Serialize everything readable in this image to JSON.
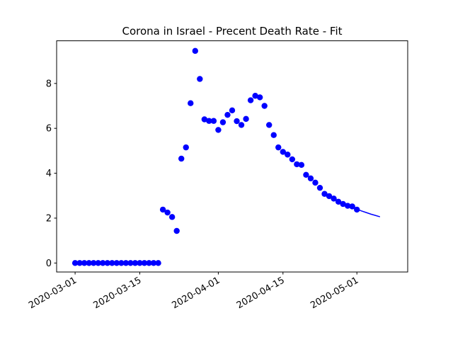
{
  "chart_data": {
    "type": "scatter",
    "title": "Corona in Israel - Precent Death Rate - Fit",
    "xlabel": "",
    "ylabel": "",
    "x_start": "2020-03-01",
    "xlim": [
      "2020-02-26",
      "2020-05-12"
    ],
    "ylim": [
      -0.4,
      9.9
    ],
    "x_ticks": [
      "2020-03-01",
      "2020-03-15",
      "2020-04-01",
      "2020-04-15",
      "2020-05-01"
    ],
    "y_ticks": [
      0,
      2,
      4,
      6,
      8
    ],
    "grid": false,
    "series": [
      {
        "kind": "points",
        "color": "#0000ff",
        "points": [
          [
            "2020-03-01",
            0
          ],
          [
            "2020-03-02",
            0
          ],
          [
            "2020-03-03",
            0
          ],
          [
            "2020-03-04",
            0
          ],
          [
            "2020-03-05",
            0
          ],
          [
            "2020-03-06",
            0
          ],
          [
            "2020-03-07",
            0
          ],
          [
            "2020-03-08",
            0
          ],
          [
            "2020-03-09",
            0
          ],
          [
            "2020-03-10",
            0
          ],
          [
            "2020-03-11",
            0
          ],
          [
            "2020-03-12",
            0
          ],
          [
            "2020-03-13",
            0
          ],
          [
            "2020-03-14",
            0
          ],
          [
            "2020-03-15",
            0
          ],
          [
            "2020-03-16",
            0
          ],
          [
            "2020-03-17",
            0
          ],
          [
            "2020-03-18",
            0
          ],
          [
            "2020-03-19",
            0
          ],
          [
            "2020-03-20",
            2.38
          ],
          [
            "2020-03-21",
            2.25
          ],
          [
            "2020-03-22",
            2.05
          ],
          [
            "2020-03-23",
            1.43
          ],
          [
            "2020-03-24",
            4.65
          ],
          [
            "2020-03-25",
            5.15
          ],
          [
            "2020-03-26",
            7.12
          ],
          [
            "2020-03-27",
            9.45
          ],
          [
            "2020-03-28",
            8.2
          ],
          [
            "2020-03-29",
            6.4
          ],
          [
            "2020-03-30",
            6.33
          ],
          [
            "2020-03-31",
            6.33
          ],
          [
            "2020-04-01",
            5.93
          ],
          [
            "2020-04-02",
            6.27
          ],
          [
            "2020-04-03",
            6.6
          ],
          [
            "2020-04-04",
            6.8
          ],
          [
            "2020-04-05",
            6.32
          ],
          [
            "2020-04-06",
            6.15
          ],
          [
            "2020-04-07",
            6.42
          ],
          [
            "2020-04-08",
            7.25
          ],
          [
            "2020-04-09",
            7.45
          ],
          [
            "2020-04-10",
            7.38
          ],
          [
            "2020-04-11",
            7.0
          ],
          [
            "2020-04-12",
            6.15
          ],
          [
            "2020-04-13",
            5.7
          ],
          [
            "2020-04-14",
            5.15
          ],
          [
            "2020-04-15",
            4.95
          ],
          [
            "2020-04-16",
            4.83
          ],
          [
            "2020-04-17",
            4.62
          ],
          [
            "2020-04-18",
            4.4
          ],
          [
            "2020-04-19",
            4.37
          ],
          [
            "2020-04-20",
            3.93
          ],
          [
            "2020-04-21",
            3.77
          ],
          [
            "2020-04-22",
            3.58
          ],
          [
            "2020-04-23",
            3.35
          ],
          [
            "2020-04-24",
            3.08
          ],
          [
            "2020-04-25",
            2.98
          ],
          [
            "2020-04-26",
            2.87
          ],
          [
            "2020-04-27",
            2.73
          ],
          [
            "2020-04-28",
            2.63
          ],
          [
            "2020-04-29",
            2.55
          ],
          [
            "2020-04-30",
            2.52
          ],
          [
            "2020-05-01",
            2.38
          ]
        ]
      },
      {
        "kind": "line",
        "color": "#0000ff",
        "points": [
          [
            "2020-04-26",
            2.87
          ],
          [
            "2020-04-27",
            2.76
          ],
          [
            "2020-04-28",
            2.66
          ],
          [
            "2020-04-29",
            2.57
          ],
          [
            "2020-04-30",
            2.48
          ],
          [
            "2020-05-01",
            2.4
          ],
          [
            "2020-05-02",
            2.32
          ],
          [
            "2020-05-03",
            2.25
          ],
          [
            "2020-05-04",
            2.18
          ],
          [
            "2020-05-05",
            2.12
          ],
          [
            "2020-05-06",
            2.06
          ]
        ]
      }
    ]
  }
}
